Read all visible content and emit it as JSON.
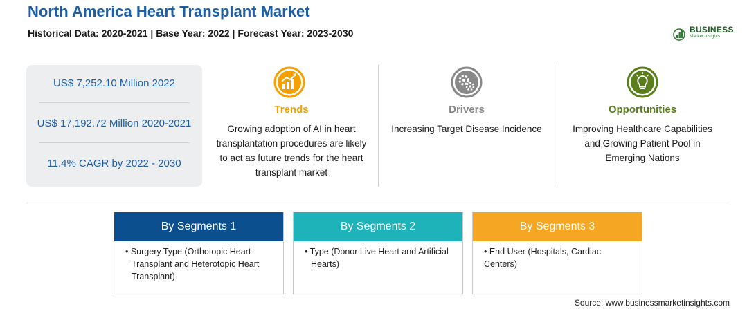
{
  "header": {
    "title": "North America Heart Transplant Market",
    "subtitle": "Historical Data: 2020-2021 | Base Year: 2022 | Forecast Year: 2023-2030"
  },
  "logo": {
    "word": "BUSINESS",
    "sub": "Market Insights",
    "color": "#1b5e20"
  },
  "stats": [
    "US$ 7,252.10 Million 2022",
    "US$ 17,192.72 Million 2020-2021",
    "11.4% CAGR by 2022 - 2030"
  ],
  "columns": {
    "trends": {
      "label": "Trends",
      "icon": "growth-chart-icon",
      "color": "#f5a000",
      "lines": [
        "Growing adoption of AI in heart",
        "transplantation procedures are likely",
        "to act as future trends for the heart",
        "transplant market"
      ]
    },
    "drivers": {
      "label": "Drivers",
      "icon": "gears-icon",
      "color": "#888888",
      "lines": [
        "Increasing Target Disease Incidence"
      ]
    },
    "opportunities": {
      "label": "Opportunities",
      "icon": "lightbulb-icon",
      "color": "#5a7f1a",
      "lines": [
        "Improving Healthcare Capabilities",
        "and Growing Patient Pool in",
        "Emerging Nations"
      ]
    }
  },
  "segments": [
    {
      "title": "By Segments 1",
      "color": "#0b4f8f",
      "lines": [
        "• Surgery Type (Orthotopic Heart",
        "Transplant and Heterotopic Heart",
        "Transplant)"
      ]
    },
    {
      "title": "By Segments 2",
      "color": "#1eb3b8",
      "lines": [
        "• Type (Donor Live Heart and Artificial",
        "Hearts)"
      ]
    },
    {
      "title": "By Segments 3",
      "color": "#f5a623",
      "lines": [
        "• End User (Hospitals, Cardiac Centers)"
      ]
    }
  ],
  "source": "Source: www.businessmarketinsights.com"
}
